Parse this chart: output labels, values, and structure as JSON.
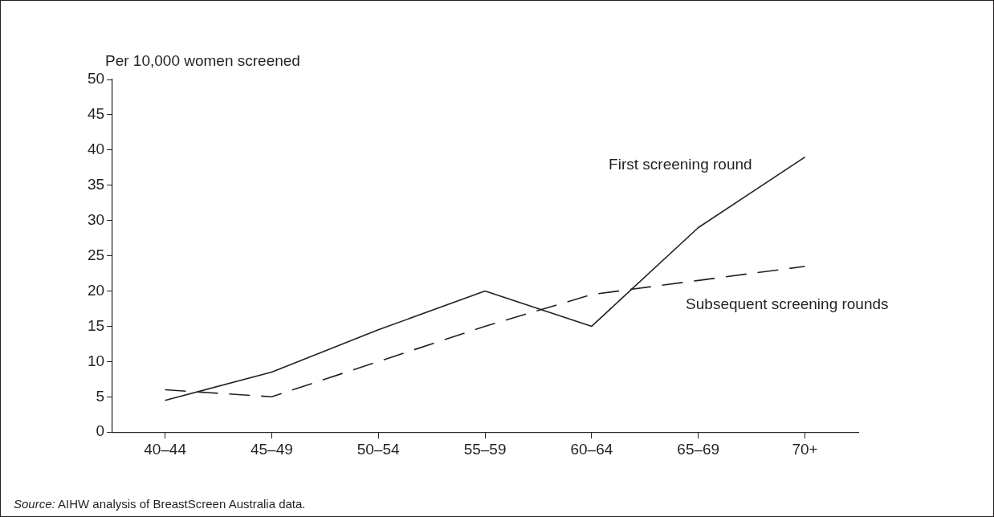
{
  "chart_data": {
    "type": "line",
    "ylabel": "Per 10,000 women screened",
    "categories": [
      "40–44",
      "45–49",
      "50–54",
      "55–59",
      "60–64",
      "65–69",
      "70+"
    ],
    "series": [
      {
        "name": "First screening round",
        "color": "#231f20",
        "line_style": "solid",
        "values": [
          4.5,
          8.5,
          14.5,
          20,
          15,
          29,
          39
        ]
      },
      {
        "name": "Subsequent screening rounds",
        "color": "#231f20",
        "line_style": "dashed",
        "values": [
          6,
          5,
          10,
          15,
          19.5,
          21.5,
          23.5
        ]
      }
    ],
    "ylim": [
      0,
      50
    ],
    "yticks": [
      0,
      5,
      10,
      15,
      20,
      25,
      30,
      35,
      40,
      45,
      50
    ],
    "grid": false,
    "legend": false,
    "marker": "none",
    "annotations": [
      "Source: AIHW analysis of BreastScreen Australia data."
    ]
  }
}
